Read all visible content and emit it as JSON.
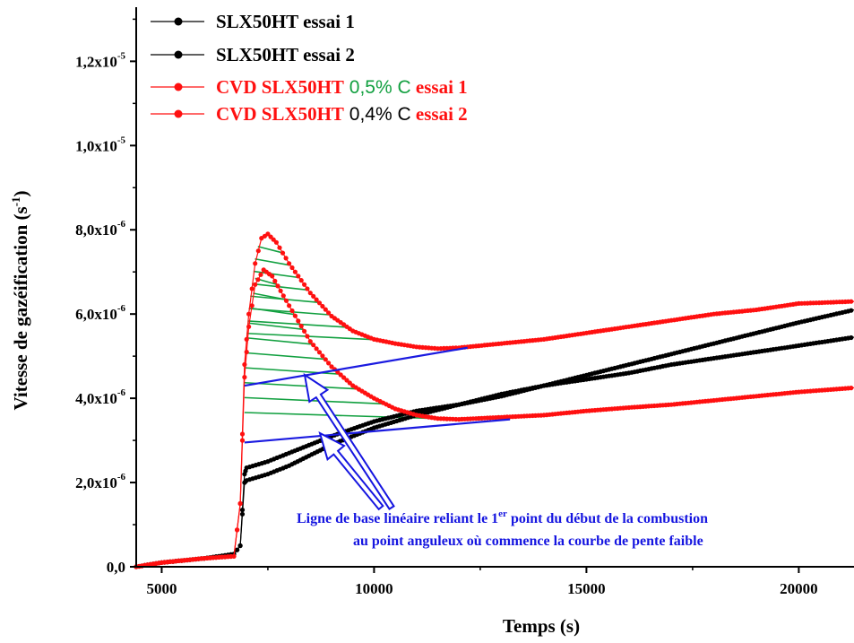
{
  "chart_data": {
    "type": "line",
    "xlabel": "Temps  (s)",
    "ylabel": "Vitesse de gazéification (s",
    "ylabel_sup": "-1",
    "ylabel_close": ")",
    "xlim": [
      4400,
      21300
    ],
    "ylim": [
      0,
      1.32e-05
    ],
    "x_ticks": [
      {
        "value": 5000,
        "label": "5000"
      },
      {
        "value": 10000,
        "label": "10000"
      },
      {
        "value": 15000,
        "label": "15000"
      },
      {
        "value": 20000,
        "label": "20000"
      }
    ],
    "y_ticks": [
      {
        "value": 0,
        "mant": "0,0",
        "exp": ""
      },
      {
        "value": 2e-06,
        "mant": "2,0x10",
        "exp": "-6"
      },
      {
        "value": 4e-06,
        "mant": "4,0x10",
        "exp": "-6"
      },
      {
        "value": 6e-06,
        "mant": "6,0x10",
        "exp": "-6"
      },
      {
        "value": 8e-06,
        "mant": "8,0x10",
        "exp": "-6"
      },
      {
        "value": 1e-05,
        "mant": "1,0x10",
        "exp": "-5"
      },
      {
        "value": 1.2e-05,
        "mant": "1,2x10",
        "exp": "-5"
      }
    ],
    "series": [
      {
        "name": "SLX50HT essai 1",
        "color": "#000000",
        "x": [
          4400,
          5000,
          6000,
          6700,
          6850,
          6950,
          7000,
          7500,
          8000,
          9000,
          10000,
          11000,
          12000,
          13000,
          14000,
          15000,
          16000,
          17000,
          18000,
          19000,
          20000,
          21300
        ],
        "y": [
          0.0,
          1e-07,
          2e-07,
          3e-07,
          5e-07,
          2e-06,
          2.05e-06,
          2.2e-06,
          2.4e-06,
          2.9e-06,
          3.3e-06,
          3.6e-06,
          3.85e-06,
          4.1e-06,
          4.3e-06,
          4.45e-06,
          4.6e-06,
          4.8e-06,
          4.95e-06,
          5.1e-06,
          5.25e-06,
          5.45e-06
        ]
      },
      {
        "name": "SLX50HT essai 2",
        "color": "#000000",
        "x": [
          4400,
          5000,
          6000,
          6700,
          6850,
          6950,
          7000,
          7500,
          8000,
          9000,
          10000,
          11000,
          12000,
          13000,
          14000,
          15000,
          16000,
          17000,
          18000,
          19000,
          20000,
          21300
        ],
        "y": [
          0.0,
          1e-07,
          2e-07,
          3e-07,
          5e-07,
          2.2e-06,
          2.35e-06,
          2.5e-06,
          2.7e-06,
          3.1e-06,
          3.45e-06,
          3.7e-06,
          3.85e-06,
          4.05e-06,
          4.3e-06,
          4.55e-06,
          4.8e-06,
          5.05e-06,
          5.3e-06,
          5.55e-06,
          5.8e-06,
          6.1e-06
        ]
      },
      {
        "name": "CVD SLX50HT 0,5% C essai 1",
        "color": "#ff1010",
        "x": [
          4400,
          5000,
          6000,
          6700,
          6850,
          6950,
          7050,
          7200,
          7350,
          7500,
          7700,
          8000,
          8500,
          9000,
          9500,
          10000,
          10500,
          11000,
          11500,
          12000,
          13000,
          14000,
          15000,
          16000,
          17000,
          18000,
          19000,
          20000,
          21300
        ],
        "y": [
          0.0,
          1e-07,
          2e-07,
          2.5e-07,
          1.5e-06,
          4.8e-06,
          6e-06,
          7.2e-06,
          7.8e-06,
          7.9e-06,
          7.7e-06,
          7.2e-06,
          6.5e-06,
          5.95e-06,
          5.6e-06,
          5.4e-06,
          5.3e-06,
          5.22e-06,
          5.18e-06,
          5.2e-06,
          5.3e-06,
          5.4e-06,
          5.55e-06,
          5.7e-06,
          5.85e-06,
          6e-06,
          6.1e-06,
          6.25e-06,
          6.3e-06
        ]
      },
      {
        "name": "CVD SLX50HT 0,4% C essai 2",
        "color": "#ff1010",
        "x": [
          4400,
          5000,
          6000,
          6700,
          6850,
          6950,
          7050,
          7200,
          7400,
          7600,
          8000,
          8500,
          9000,
          9500,
          10000,
          10500,
          11000,
          11500,
          12000,
          13000,
          14000,
          15000,
          16000,
          17000,
          18000,
          19000,
          20000,
          21300
        ],
        "y": [
          0.0,
          1e-07,
          2e-07,
          2.5e-07,
          1.5e-06,
          4.5e-06,
          5.7e-06,
          6.7e-06,
          7.05e-06,
          6.9e-06,
          6.2e-06,
          5.35e-06,
          4.75e-06,
          4.3e-06,
          4e-06,
          3.75e-06,
          3.6e-06,
          3.52e-06,
          3.5e-06,
          3.55e-06,
          3.6e-06,
          3.7e-06,
          3.78e-06,
          3.85e-06,
          3.95e-06,
          4.05e-06,
          4.15e-06,
          4.25e-06
        ]
      }
    ],
    "baselines": [
      {
        "color": "#1a1ae0",
        "x": [
          6950,
          12200
        ],
        "y": [
          4.3e-06,
          5.2e-06
        ]
      },
      {
        "color": "#1a1ae0",
        "x": [
          6950,
          13200
        ],
        "y": [
          2.95e-06,
          3.5e-06
        ]
      }
    ],
    "legend": [
      {
        "line_color": "#000000",
        "parts": [
          {
            "text": "SLX50HT essai 1",
            "color": "#000000"
          }
        ]
      },
      {
        "line_color": "#000000",
        "parts": [
          {
            "text": "SLX50HT essai 2",
            "color": "#000000"
          }
        ]
      },
      {
        "line_color": "#ff1010",
        "parts": [
          {
            "text": "CVD SLX50HT",
            "color": "#ff1010"
          },
          {
            "text": "0,5% C",
            "color": "#12a040",
            "cls": "legend-c"
          },
          {
            "text": "essai 1",
            "color": "#ff1010"
          }
        ]
      },
      {
        "line_color": "#ff1010",
        "parts": [
          {
            "text": "CVD SLX50HT",
            "color": "#ff1010"
          },
          {
            "text": "0,4% C",
            "color": "#000000",
            "cls": "legend-c"
          },
          {
            "text": "essai 2",
            "color": "#ff1010"
          }
        ]
      }
    ],
    "legend_placement": "top-left",
    "annotation": {
      "line1_pre": "Ligne de base linéaire reliant le 1",
      "line1_sup": "er",
      "line1_post": " point du début de la combustion",
      "line2": "au point anguleux où commence la courbe de pente faible",
      "color": "#1515e0"
    },
    "hatch_color": "#12a040",
    "grid": false
  }
}
